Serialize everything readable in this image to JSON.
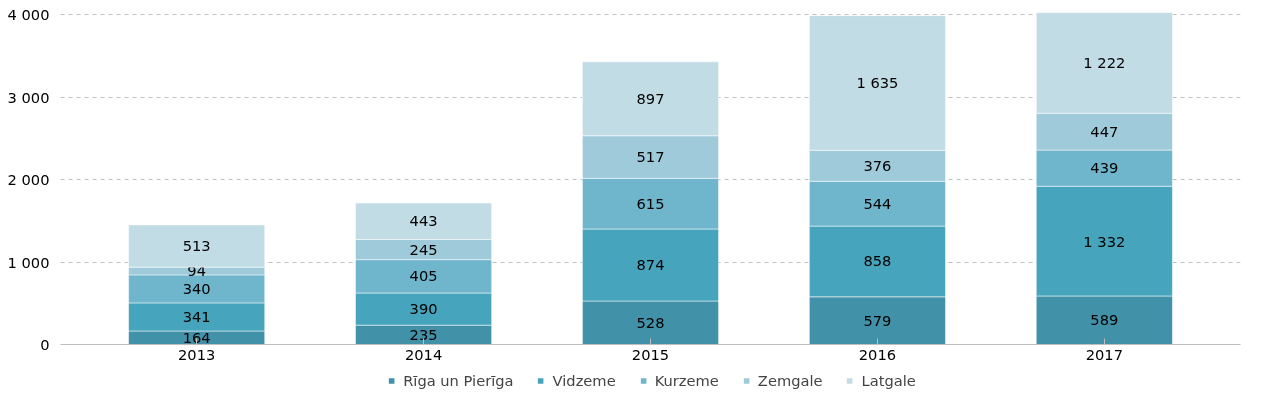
{
  "chart_data": {
    "type": "bar",
    "stacked": true,
    "categories": [
      "2013",
      "2014",
      "2015",
      "2016",
      "2017"
    ],
    "series": [
      {
        "name": "Rīga un Pierīga",
        "color": "#4191a8",
        "values": [
          164,
          235,
          528,
          579,
          589
        ],
        "value_labels": [
          "164",
          "235",
          "528",
          "579",
          "589"
        ]
      },
      {
        "name": "Vidzeme",
        "color": "#47a4bd",
        "values": [
          341,
          390,
          874,
          858,
          1332
        ],
        "value_labels": [
          "341",
          "390",
          "874",
          "858",
          "1 332"
        ]
      },
      {
        "name": "Kurzeme",
        "color": "#6fb6cd",
        "values": [
          340,
          405,
          615,
          544,
          439
        ],
        "value_labels": [
          "340",
          "405",
          "615",
          "544",
          "439"
        ]
      },
      {
        "name": "Zemgale",
        "color": "#9fcada",
        "values": [
          94,
          245,
          517,
          376,
          447
        ],
        "value_labels": [
          "94",
          "245",
          "517",
          "376",
          "447"
        ]
      },
      {
        "name": "Latgale",
        "color": "#c2dce5",
        "values": [
          513,
          443,
          897,
          1635,
          1222
        ],
        "value_labels": [
          "513",
          "443",
          "897",
          "1 635",
          "1 222"
        ]
      }
    ],
    "ylim": [
      0,
      4030
    ],
    "yticks": [
      {
        "value": 0,
        "label": "0"
      },
      {
        "value": 1000,
        "label": "1 000"
      },
      {
        "value": 2000,
        "label": "2 000"
      },
      {
        "value": 3000,
        "label": "3 000"
      },
      {
        "value": 4000,
        "label": "4 000"
      }
    ],
    "grid": "y",
    "legend": "bottom"
  }
}
